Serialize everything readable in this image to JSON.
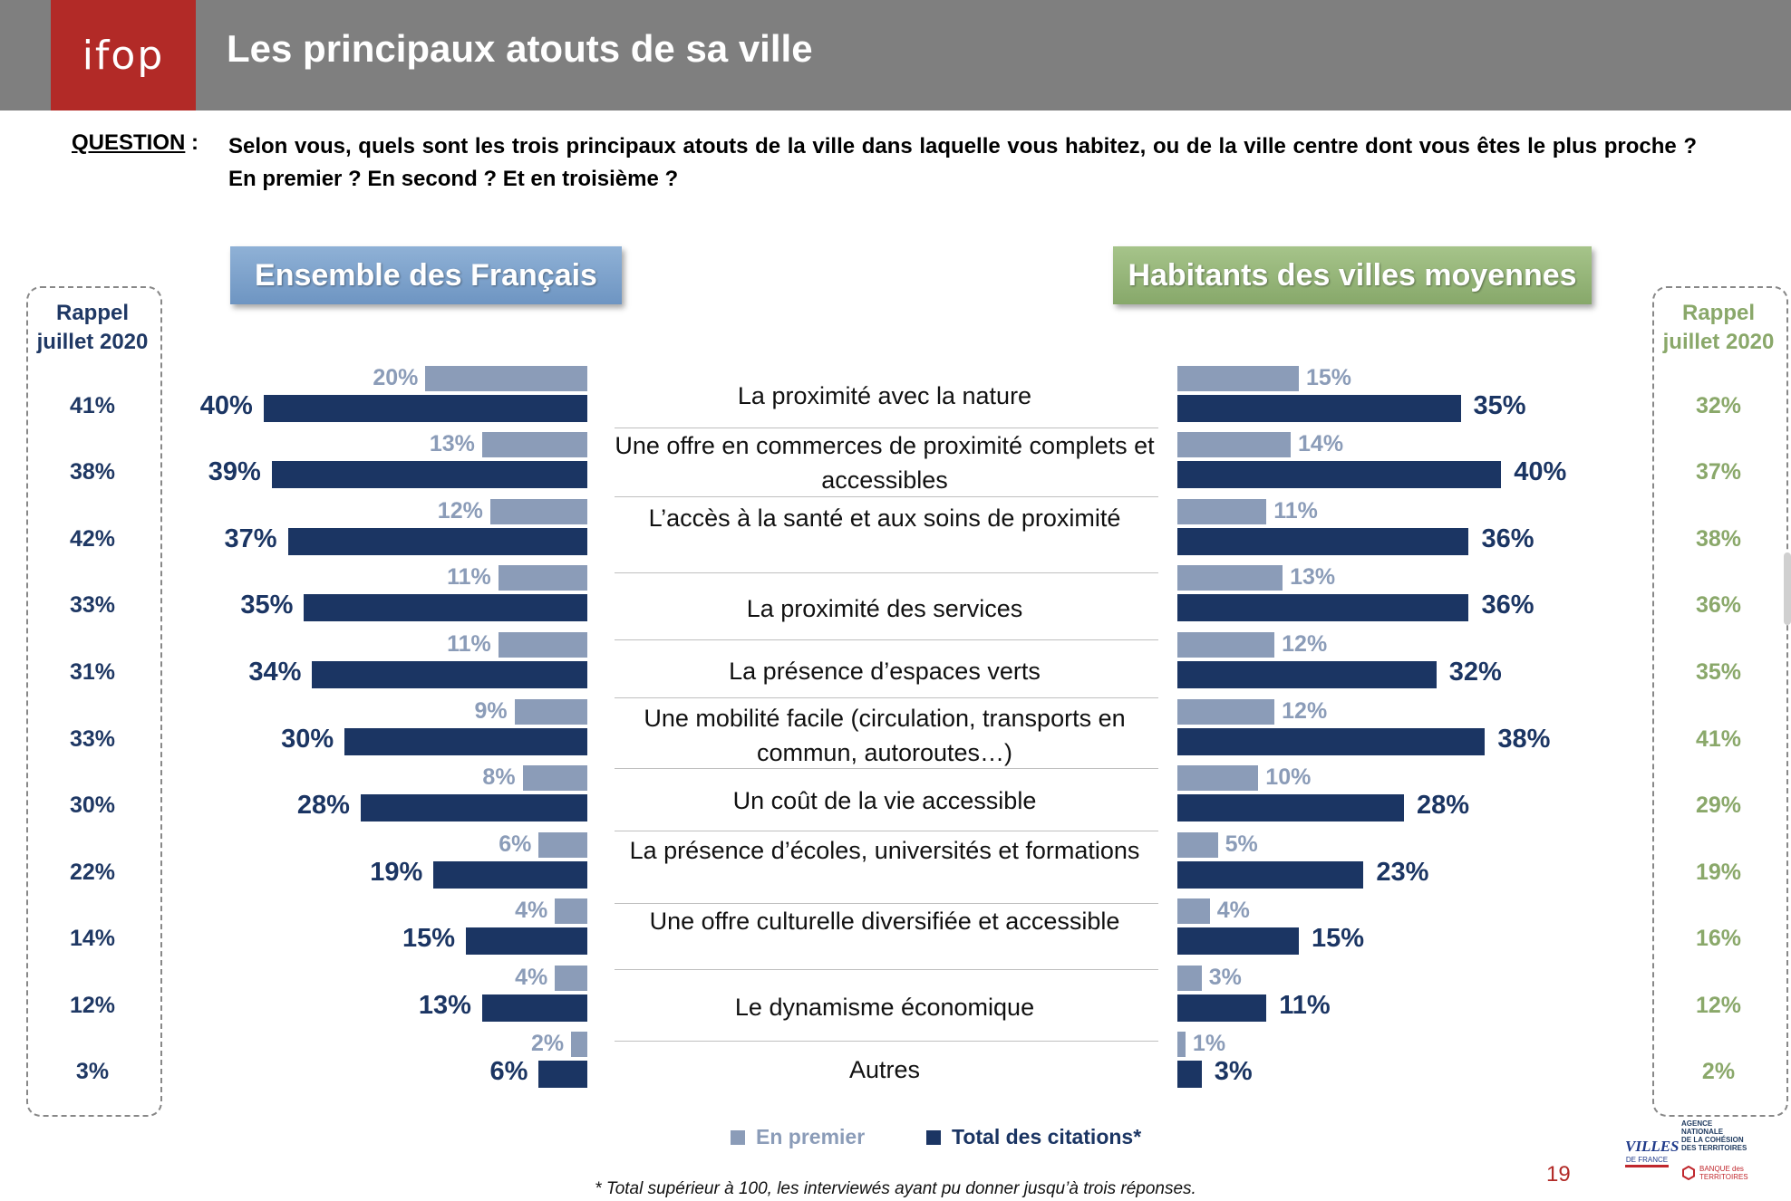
{
  "header": {
    "logo": "ifop",
    "title": "Les principaux atouts de sa ville"
  },
  "question": {
    "label": "QUESTION",
    "separator": " :",
    "text": "Selon vous, quels sont les trois principaux atouts de la ville dans laquelle vous habitez, ou de la ville centre dont vous êtes le plus proche ? En premier ? En second ? Et en troisième ?"
  },
  "panels": {
    "left_title": "Ensemble des Français",
    "right_title": "Habitants des villes moyennes",
    "recall_title_line1": "Rappel",
    "recall_title_line2": "juillet 2020"
  },
  "colors": {
    "en_premier": "#8b9cb8",
    "total": "#1b3563",
    "left_recall": "#1f3864",
    "right_recall": "#8aa86a",
    "brand": "#b22a27"
  },
  "chart_data": {
    "type": "bar",
    "orientation": "horizontal",
    "categories": [
      "La proximité avec la nature",
      "Une offre en commerces de proximité complets et accessibles",
      "L’accès à la santé et aux soins de proximité",
      "La proximité des services",
      "La présence d’espaces verts",
      "Une mobilité facile (circulation, transports en commun, autoroutes…)",
      "Un coût de la vie accessible",
      "La présence d’écoles, universités et formations",
      "Une offre culturelle diversifiée et accessible",
      "Le dynamisme économique",
      "Autres"
    ],
    "ensemble": {
      "title": "Ensemble des Français",
      "series": [
        {
          "name": "En premier",
          "values": [
            20,
            13,
            12,
            11,
            11,
            9,
            8,
            6,
            4,
            4,
            2
          ]
        },
        {
          "name": "Total des citations*",
          "values": [
            40,
            39,
            37,
            35,
            34,
            30,
            28,
            19,
            15,
            13,
            6
          ]
        }
      ],
      "rappel_juillet_2020": [
        41,
        38,
        42,
        33,
        31,
        33,
        30,
        22,
        14,
        12,
        3
      ]
    },
    "villes_moyennes": {
      "title": "Habitants des villes moyennes",
      "series": [
        {
          "name": "En premier",
          "values": [
            15,
            14,
            11,
            13,
            12,
            12,
            10,
            5,
            4,
            3,
            1
          ]
        },
        {
          "name": "Total des citations*",
          "values": [
            35,
            40,
            36,
            36,
            32,
            38,
            28,
            23,
            15,
            11,
            3
          ]
        }
      ],
      "rappel_juillet_2020": [
        32,
        37,
        38,
        36,
        35,
        41,
        29,
        19,
        16,
        12,
        2
      ]
    },
    "value_suffix": "%",
    "legend": [
      "En premier",
      "Total des citations*"
    ],
    "legend_position": "bottom"
  },
  "footnote": "* Total supérieur à 100, les interviewés ayant pu donner jusqu’à trois réponses.",
  "page_number": "19",
  "partners": {
    "villes_de_france_1": "VILLES",
    "villes_de_france_2": "DE FRANCE",
    "anct_1": "AGENCE",
    "anct_2": "NATIONALE",
    "anct_3": "DE LA COHÉSION",
    "anct_4": "DES TERRITOIRES",
    "banque_1": "BANQUE des",
    "banque_2": "TERRITOIRES"
  }
}
